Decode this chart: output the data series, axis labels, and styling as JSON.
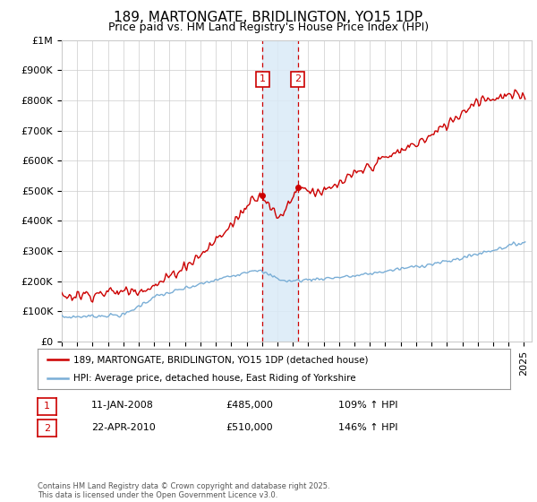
{
  "title": "189, MARTONGATE, BRIDLINGTON, YO15 1DP",
  "subtitle": "Price paid vs. HM Land Registry's House Price Index (HPI)",
  "ylabel_ticks": [
    "£0",
    "£100K",
    "£200K",
    "£300K",
    "£400K",
    "£500K",
    "£600K",
    "£700K",
    "£800K",
    "£900K",
    "£1M"
  ],
  "ytick_values": [
    0,
    100000,
    200000,
    300000,
    400000,
    500000,
    600000,
    700000,
    800000,
    900000,
    1000000
  ],
  "ylim": [
    0,
    1000000
  ],
  "xlim_start": 1995.0,
  "xlim_end": 2025.5,
  "sale1_x": 2008.04,
  "sale1_y": 485000,
  "sale1_label": "1",
  "sale2_x": 2010.32,
  "sale2_y": 510000,
  "sale2_label": "2",
  "red_line_color": "#cc0000",
  "blue_line_color": "#7aaed6",
  "annotation_box_color": "#cc0000",
  "vline_color": "#cc0000",
  "vline_fill": "#daeaf7",
  "legend_line1": "189, MARTONGATE, BRIDLINGTON, YO15 1DP (detached house)",
  "legend_line2": "HPI: Average price, detached house, East Riding of Yorkshire",
  "table_row1": [
    "1",
    "11-JAN-2008",
    "£485,000",
    "109% ↑ HPI"
  ],
  "table_row2": [
    "2",
    "22-APR-2010",
    "£510,000",
    "146% ↑ HPI"
  ],
  "footer": "Contains HM Land Registry data © Crown copyright and database right 2025.\nThis data is licensed under the Open Government Licence v3.0.",
  "bg_color": "#ffffff",
  "grid_color": "#cccccc",
  "title_fontsize": 11,
  "subtitle_fontsize": 9,
  "tick_fontsize": 8
}
